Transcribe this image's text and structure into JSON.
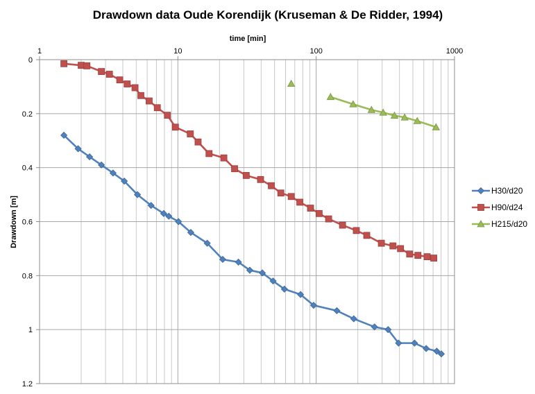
{
  "chart_data": {
    "type": "scatter",
    "title": "Drawdown data Oude Korendijk (Kruseman & De Ridder, 1994)",
    "xlabel": "time [min]",
    "ylabel": "Drawdown [m]",
    "x_scale": "log",
    "xlim": [
      1,
      1000
    ],
    "ylim": [
      0,
      1.2
    ],
    "y_reversed": true,
    "x_axis_position": "top",
    "x_tick_labels": [
      "1",
      "10",
      "100",
      "1000"
    ],
    "y_tick_labels": [
      "0",
      "0.2",
      "0.4",
      "0.6",
      "0.8",
      "1",
      "1.2"
    ],
    "grid": true,
    "legend_position": "right",
    "series": [
      {
        "name": "H30/d20",
        "color": "#4F81BD",
        "marker": "diamond",
        "x": [
          1.5,
          1.9,
          2.3,
          2.8,
          3.4,
          4.1,
          5.1,
          6.4,
          7.9,
          8.6,
          10.1,
          12.4,
          16.3,
          21.1,
          27.4,
          33.1,
          40.8,
          48.8,
          58.9,
          77.1,
          95.8,
          141,
          187,
          264,
          331,
          394,
          514,
          624,
          744,
          803
        ],
        "y": [
          0.28,
          0.33,
          0.36,
          0.39,
          0.42,
          0.45,
          0.5,
          0.54,
          0.57,
          0.58,
          0.6,
          0.64,
          0.68,
          0.74,
          0.75,
          0.78,
          0.79,
          0.82,
          0.85,
          0.87,
          0.91,
          0.93,
          0.96,
          0.99,
          1.0,
          1.05,
          1.05,
          1.07,
          1.08,
          1.09
        ]
      },
      {
        "name": "H90/d24",
        "color": "#C0504D",
        "marker": "square",
        "x": [
          1.5,
          2.0,
          2.2,
          2.8,
          3.2,
          3.8,
          4.3,
          4.9,
          5.4,
          6.2,
          7.1,
          8.4,
          9.6,
          12.3,
          14.0,
          16.8,
          21.5,
          25.7,
          31.2,
          39.6,
          47.4,
          55.5,
          66.0,
          76.2,
          91.0,
          105,
          123,
          155,
          195,
          232,
          296,
          359,
          407,
          474,
          544,
          634,
          708
        ],
        "y": [
          0.015,
          0.021,
          0.023,
          0.044,
          0.054,
          0.075,
          0.09,
          0.104,
          0.133,
          0.153,
          0.178,
          0.206,
          0.25,
          0.275,
          0.305,
          0.348,
          0.364,
          0.404,
          0.429,
          0.444,
          0.467,
          0.494,
          0.507,
          0.528,
          0.55,
          0.57,
          0.59,
          0.613,
          0.633,
          0.651,
          0.68,
          0.69,
          0.7,
          0.72,
          0.725,
          0.73,
          0.735
        ]
      },
      {
        "name": "H215/d20",
        "color": "#9BBB59",
        "marker": "triangle",
        "x": [
          66,
          127,
          185,
          251,
          305,
          368,
          436,
          538,
          735
        ],
        "y": [
          0.089,
          0.138,
          0.165,
          0.186,
          0.196,
          0.207,
          0.214,
          0.227,
          0.25
        ]
      }
    ]
  }
}
